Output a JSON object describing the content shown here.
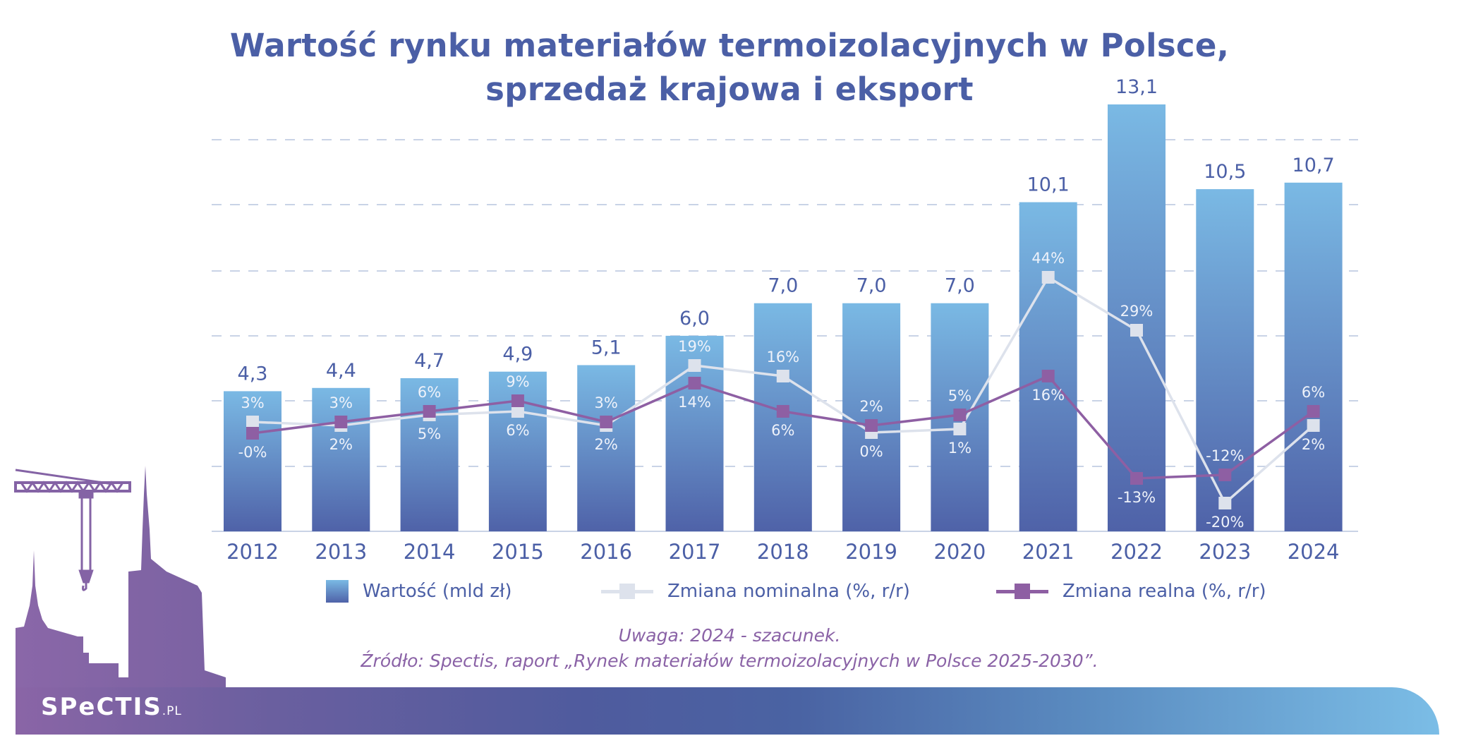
{
  "title": {
    "line1": "Wartość rynku materiałów termoizolacyjnych w Polsce,",
    "line2": "sprzedaż krajowa i eksport"
  },
  "colors": {
    "title": "#4b5fa6",
    "bar_top": "#7ab9e4",
    "bar_bottom": "#4f62a8",
    "nominal": "#dde2ec",
    "real": "#8e5fa3",
    "note": "#8a62a6",
    "grid": "#c9d3e6"
  },
  "chart_data": {
    "type": "bar",
    "title": "Wartość rynku materiałów termoizolacyjnych w Polsce, sprzedaż krajowa i eksport",
    "categories": [
      "2012",
      "2013",
      "2014",
      "2015",
      "2016",
      "2017",
      "2018",
      "2019",
      "2020",
      "2021",
      "2022",
      "2023",
      "2024"
    ],
    "series": [
      {
        "name": "Wartość (mld zł)",
        "type": "bar",
        "values": [
          4.3,
          4.4,
          4.7,
          4.9,
          5.1,
          6.0,
          7.0,
          7.0,
          7.0,
          10.1,
          13.1,
          10.5,
          10.7
        ],
        "labels": [
          "4,3",
          "4,4",
          "4,7",
          "4,9",
          "5,1",
          "6,0",
          "7,0",
          "7,0",
          "7,0",
          "10,1",
          "13,1",
          "10,5",
          "10,7"
        ]
      },
      {
        "name": "Zmiana nominalna (%, r/r)",
        "type": "line",
        "values": [
          3,
          2,
          5,
          6,
          2,
          19,
          16,
          0,
          1,
          44,
          29,
          -20,
          2
        ],
        "labels": [
          "3%",
          "2%",
          "5%",
          "6%",
          "2%",
          "19%",
          "16%",
          "0%",
          "1%",
          "44%",
          "29%",
          "-20%",
          "2%"
        ]
      },
      {
        "name": "Zmiana realna (%, r/r)",
        "type": "line",
        "values": [
          -0.2,
          3,
          6,
          9,
          3,
          14,
          6,
          2,
          5,
          16,
          -13,
          -12,
          6
        ],
        "labels": [
          "-0%",
          "3%",
          "6%",
          "9%",
          "3%",
          "14%",
          "6%",
          "2%",
          "5%",
          "16%",
          "-13%",
          "-12%",
          "6%"
        ]
      }
    ],
    "ylim_bars": [
      0,
      13.1
    ],
    "ylim_lines": [
      -28,
      88
    ],
    "grid": true,
    "legend_position": "bottom"
  },
  "legend": {
    "bar": "Wartość (mld zł)",
    "nominal": "Zmiana nominalna (%, r/r)",
    "real": "Zmiana realna (%, r/r)"
  },
  "notes": {
    "remark": "Uwaga: 2024 - szacunek.",
    "source": "Źródło: Spectis, raport „Rynek materiałów termoizolacyjnych w Polsce 2025-2030”."
  },
  "logo": {
    "name": "SPeCTIS",
    "suffix": ".PL"
  }
}
